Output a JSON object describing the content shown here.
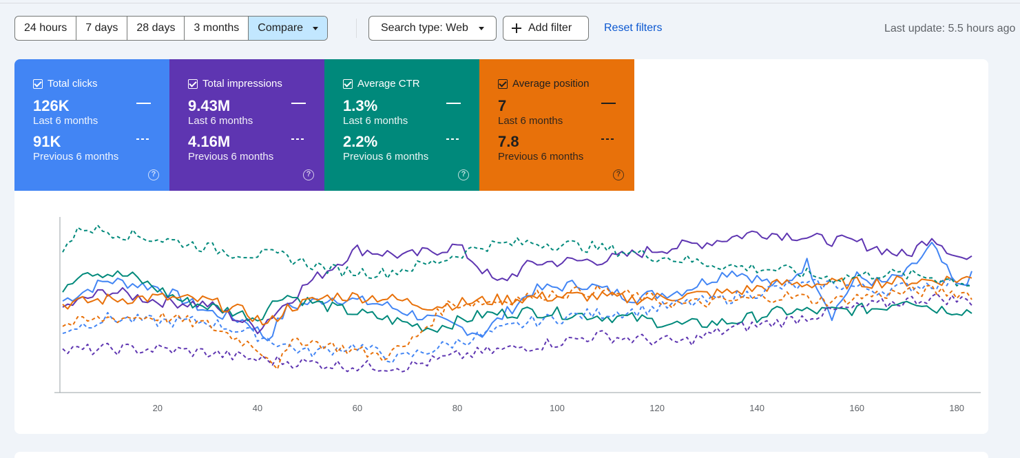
{
  "toolbar": {
    "ranges": [
      "24 hours",
      "7 days",
      "28 days",
      "3 months"
    ],
    "compare_label": "Compare",
    "search_type_label": "Search type: Web",
    "add_filter_label": "Add filter",
    "reset_label": "Reset filters",
    "last_update": "Last update: 5.5 hours ago"
  },
  "cards": [
    {
      "title": "Total clicks",
      "value": "126K",
      "period": "Last 6 months",
      "prev_value": "91K",
      "prev_period": "Previous 6 months",
      "color": "#4285f4"
    },
    {
      "title": "Total impressions",
      "value": "9.43M",
      "period": "Last 6 months",
      "prev_value": "4.16M",
      "prev_period": "Previous 6 months",
      "color": "#5e35b1"
    },
    {
      "title": "Average CTR",
      "value": "1.3%",
      "period": "Last 6 months",
      "prev_value": "2.2%",
      "prev_period": "Previous 6 months",
      "color": "#00897b"
    },
    {
      "title": "Average position",
      "value": "7",
      "period": "Last 6 months",
      "prev_value": "7.8",
      "prev_period": "Previous 6 months",
      "color": "#e8710a"
    }
  ],
  "chart_data": {
    "type": "line",
    "xlim": [
      1,
      183
    ],
    "xticks": [
      20,
      40,
      60,
      80,
      100,
      120,
      140,
      160,
      180
    ],
    "grid": false,
    "series": [
      {
        "metric": "clicks",
        "period": "current",
        "color": "#4285f4",
        "style": "solid",
        "points": [
          [
            1,
            52
          ],
          [
            10,
            64
          ],
          [
            20,
            60
          ],
          [
            30,
            46
          ],
          [
            38,
            40
          ],
          [
            42,
            30
          ],
          [
            46,
            48
          ],
          [
            55,
            54
          ],
          [
            65,
            50
          ],
          [
            75,
            41
          ],
          [
            85,
            33
          ],
          [
            95,
            58
          ],
          [
            105,
            62
          ],
          [
            115,
            54
          ],
          [
            125,
            58
          ],
          [
            135,
            70
          ],
          [
            145,
            60
          ],
          [
            150,
            74
          ],
          [
            155,
            44
          ],
          [
            160,
            66
          ],
          [
            165,
            62
          ],
          [
            170,
            68
          ],
          [
            175,
            84
          ],
          [
            180,
            60
          ],
          [
            183,
            66
          ]
        ]
      },
      {
        "metric": "impressions",
        "period": "current",
        "color": "#5e35b1",
        "style": "solid",
        "points": [
          [
            1,
            48
          ],
          [
            10,
            58
          ],
          [
            20,
            52
          ],
          [
            30,
            50
          ],
          [
            40,
            36
          ],
          [
            50,
            62
          ],
          [
            60,
            82
          ],
          [
            70,
            78
          ],
          [
            80,
            84
          ],
          [
            88,
            62
          ],
          [
            95,
            74
          ],
          [
            110,
            76
          ],
          [
            120,
            82
          ],
          [
            130,
            86
          ],
          [
            140,
            92
          ],
          [
            148,
            90
          ],
          [
            152,
            88
          ],
          [
            160,
            86
          ],
          [
            170,
            78
          ],
          [
            175,
            90
          ],
          [
            180,
            78
          ],
          [
            183,
            75
          ]
        ]
      },
      {
        "metric": "ctr",
        "period": "current",
        "color": "#00897b",
        "style": "solid",
        "points": [
          [
            1,
            60
          ],
          [
            5,
            70
          ],
          [
            15,
            66
          ],
          [
            25,
            52
          ],
          [
            35,
            46
          ],
          [
            40,
            42
          ],
          [
            45,
            56
          ],
          [
            55,
            48
          ],
          [
            65,
            42
          ],
          [
            75,
            36
          ],
          [
            85,
            44
          ],
          [
            95,
            46
          ],
          [
            105,
            44
          ],
          [
            115,
            42
          ],
          [
            125,
            38
          ],
          [
            135,
            40
          ],
          [
            145,
            46
          ],
          [
            155,
            46
          ],
          [
            165,
            48
          ],
          [
            170,
            54
          ],
          [
            175,
            48
          ],
          [
            183,
            46
          ]
        ]
      },
      {
        "metric": "position",
        "period": "current",
        "color": "#e8710a",
        "style": "solid",
        "points": [
          [
            1,
            50
          ],
          [
            10,
            53
          ],
          [
            20,
            54
          ],
          [
            30,
            52
          ],
          [
            38,
            45
          ],
          [
            42,
            38
          ],
          [
            46,
            48
          ],
          [
            55,
            55
          ],
          [
            65,
            54
          ],
          [
            75,
            49
          ],
          [
            85,
            52
          ],
          [
            95,
            54
          ],
          [
            105,
            55
          ],
          [
            115,
            53
          ],
          [
            125,
            55
          ],
          [
            135,
            57
          ],
          [
            145,
            62
          ],
          [
            155,
            62
          ],
          [
            165,
            63
          ],
          [
            175,
            64
          ],
          [
            183,
            65
          ]
        ]
      },
      {
        "metric": "clicks",
        "period": "previous",
        "color": "#4285f4",
        "style": "dashed",
        "points": [
          [
            1,
            35
          ],
          [
            10,
            42
          ],
          [
            20,
            40
          ],
          [
            30,
            40
          ],
          [
            40,
            32
          ],
          [
            50,
            22
          ],
          [
            60,
            26
          ],
          [
            68,
            18
          ],
          [
            75,
            24
          ],
          [
            85,
            32
          ],
          [
            95,
            40
          ],
          [
            105,
            44
          ],
          [
            115,
            46
          ],
          [
            125,
            50
          ],
          [
            135,
            54
          ],
          [
            145,
            60
          ],
          [
            155,
            62
          ],
          [
            165,
            58
          ],
          [
            175,
            62
          ],
          [
            183,
            64
          ]
        ]
      },
      {
        "metric": "impressions",
        "period": "previous",
        "color": "#5e35b1",
        "style": "dashed",
        "points": [
          [
            1,
            23
          ],
          [
            10,
            24
          ],
          [
            20,
            24
          ],
          [
            30,
            22
          ],
          [
            40,
            18
          ],
          [
            50,
            16
          ],
          [
            60,
            14
          ],
          [
            70,
            14
          ],
          [
            80,
            20
          ],
          [
            90,
            24
          ],
          [
            100,
            28
          ],
          [
            108,
            32
          ],
          [
            115,
            30
          ],
          [
            125,
            28
          ],
          [
            135,
            36
          ],
          [
            145,
            40
          ],
          [
            155,
            46
          ],
          [
            165,
            50
          ],
          [
            175,
            54
          ],
          [
            183,
            52
          ]
        ]
      },
      {
        "metric": "ctr",
        "period": "previous",
        "color": "#00897b",
        "style": "dashed",
        "points": [
          [
            1,
            82
          ],
          [
            5,
            95
          ],
          [
            15,
            90
          ],
          [
            25,
            86
          ],
          [
            35,
            80
          ],
          [
            45,
            78
          ],
          [
            55,
            70
          ],
          [
            65,
            68
          ],
          [
            75,
            74
          ],
          [
            85,
            84
          ],
          [
            95,
            86
          ],
          [
            105,
            84
          ],
          [
            115,
            80
          ],
          [
            125,
            76
          ],
          [
            135,
            72
          ],
          [
            145,
            70
          ],
          [
            155,
            65
          ],
          [
            165,
            68
          ],
          [
            175,
            66
          ],
          [
            183,
            62
          ]
        ]
      },
      {
        "metric": "position",
        "period": "previous",
        "color": "#e8710a",
        "style": "dashed",
        "points": [
          [
            1,
            38
          ],
          [
            10,
            42
          ],
          [
            20,
            43
          ],
          [
            30,
            38
          ],
          [
            40,
            25
          ],
          [
            44,
            15
          ],
          [
            48,
            30
          ],
          [
            58,
            24
          ],
          [
            65,
            20
          ],
          [
            70,
            26
          ],
          [
            78,
            50
          ],
          [
            88,
            52
          ],
          [
            98,
            56
          ],
          [
            108,
            58
          ],
          [
            115,
            55
          ],
          [
            125,
            50
          ],
          [
            135,
            52
          ],
          [
            145,
            55
          ],
          [
            155,
            52
          ],
          [
            165,
            56
          ],
          [
            175,
            58
          ],
          [
            183,
            56
          ]
        ]
      }
    ]
  }
}
